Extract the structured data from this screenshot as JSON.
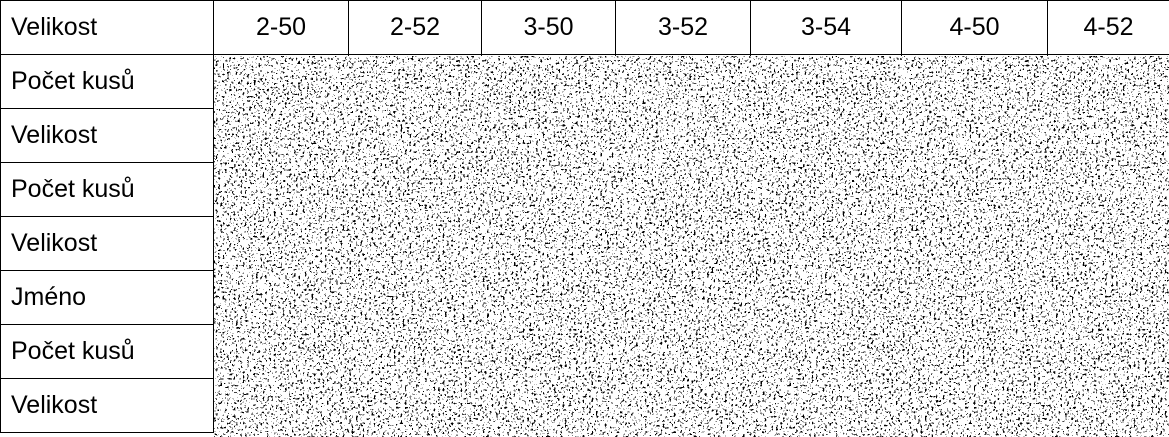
{
  "table": {
    "header": [
      "Velikost",
      "2-50",
      "2-52",
      "3-50",
      "3-52",
      "3-54",
      "4-50",
      "4-52"
    ],
    "rows": [
      [
        "Počet kusů"
      ],
      [
        "Velikost"
      ],
      [
        "Počet kusů"
      ],
      [
        "Velikost"
      ],
      [
        "Jméno"
      ],
      [
        "Počet kusů"
      ],
      [
        "Velikost"
      ]
    ]
  }
}
